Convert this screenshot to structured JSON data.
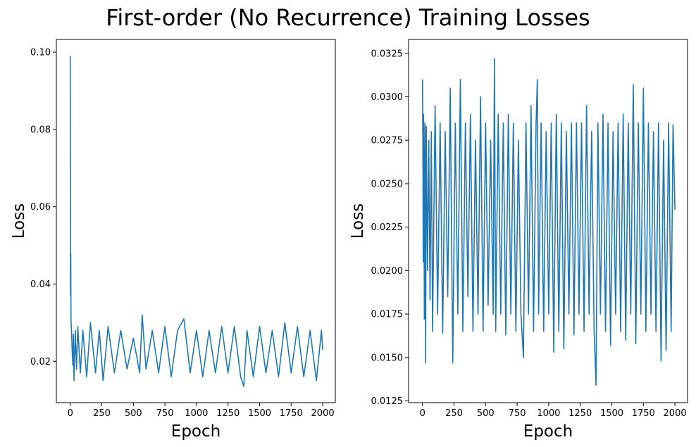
{
  "figure": {
    "title": "First-order (No Recurrence) Training Losses"
  },
  "chart_data": [
    {
      "type": "line",
      "title": "",
      "xlabel": "Epoch",
      "ylabel": "Loss",
      "xlim": [
        -110,
        2100
      ],
      "ylim": [
        0.0093,
        0.1033
      ],
      "xticks": [
        0,
        250,
        500,
        750,
        1000,
        1250,
        1500,
        1750,
        2000
      ],
      "xtick_labels": [
        "0",
        "250",
        "500",
        "750",
        "1000",
        "1250",
        "1500",
        "1750",
        "2000"
      ],
      "yticks": [
        0.02,
        0.04,
        0.06,
        0.08,
        0.1
      ],
      "ytick_labels": [
        "0.02",
        "0.04",
        "0.06",
        "0.08",
        "0.10"
      ],
      "grid": false,
      "color": "#1f77b4",
      "series": [
        {
          "x": [
            0,
            2,
            4,
            6,
            8,
            10,
            12,
            14,
            16,
            18,
            20,
            25,
            30,
            40,
            50,
            60,
            80,
            100,
            130,
            160,
            200,
            230,
            260,
            300,
            350,
            400,
            450,
            500,
            550,
            570,
            600,
            650,
            700,
            750,
            800,
            850,
            900,
            950,
            1000,
            1050,
            1100,
            1150,
            1200,
            1250,
            1300,
            1350,
            1375,
            1400,
            1450,
            1500,
            1550,
            1600,
            1650,
            1700,
            1750,
            1800,
            1850,
            1900,
            1950,
            1990,
            2000
          ],
          "y": [
            0.099,
            0.037,
            0.048,
            0.031,
            0.029,
            0.028,
            0.026,
            0.024,
            0.022,
            0.021,
            0.019,
            0.027,
            0.015,
            0.028,
            0.018,
            0.029,
            0.017,
            0.028,
            0.016,
            0.03,
            0.017,
            0.028,
            0.015,
            0.029,
            0.017,
            0.028,
            0.018,
            0.026,
            0.017,
            0.032,
            0.018,
            0.028,
            0.017,
            0.029,
            0.016,
            0.028,
            0.031,
            0.017,
            0.028,
            0.016,
            0.028,
            0.017,
            0.029,
            0.017,
            0.029,
            0.016,
            0.0135,
            0.028,
            0.016,
            0.029,
            0.017,
            0.028,
            0.016,
            0.03,
            0.017,
            0.029,
            0.016,
            0.028,
            0.015,
            0.028,
            0.023
          ]
        }
      ]
    },
    {
      "type": "line",
      "title": "",
      "xlabel": "Epoch",
      "ylabel": "Loss",
      "xlim": [
        -110,
        2100
      ],
      "ylim": [
        0.0124,
        0.0333
      ],
      "xticks": [
        0,
        250,
        500,
        750,
        1000,
        1250,
        1500,
        1750,
        2000
      ],
      "xtick_labels": [
        "0",
        "250",
        "500",
        "750",
        "1000",
        "1250",
        "1500",
        "1750",
        "2000"
      ],
      "yticks": [
        0.0125,
        0.015,
        0.0175,
        0.02,
        0.0225,
        0.025,
        0.0275,
        0.03,
        0.0325
      ],
      "ytick_labels": [
        "0.0125",
        "0.0150",
        "0.0175",
        "0.0200",
        "0.0225",
        "0.0250",
        "0.0275",
        "0.0300",
        "0.0325"
      ],
      "grid": false,
      "color": "#1f77b4",
      "series": [
        {
          "x": [
            0,
            3,
            6,
            9,
            12,
            15,
            20,
            25,
            30,
            40,
            50,
            60,
            70,
            80,
            100,
            120,
            140,
            160,
            180,
            200,
            220,
            240,
            260,
            280,
            300,
            320,
            340,
            360,
            380,
            400,
            420,
            440,
            460,
            480,
            500,
            520,
            540,
            560,
            570,
            580,
            600,
            620,
            640,
            660,
            680,
            700,
            720,
            740,
            760,
            780,
            800,
            820,
            840,
            860,
            880,
            900,
            910,
            920,
            940,
            960,
            980,
            1000,
            1020,
            1040,
            1060,
            1080,
            1100,
            1120,
            1140,
            1160,
            1180,
            1200,
            1220,
            1240,
            1260,
            1280,
            1300,
            1320,
            1340,
            1360,
            1375,
            1390,
            1410,
            1430,
            1450,
            1470,
            1490,
            1510,
            1530,
            1550,
            1570,
            1590,
            1610,
            1630,
            1650,
            1670,
            1690,
            1710,
            1730,
            1750,
            1770,
            1790,
            1810,
            1830,
            1850,
            1870,
            1890,
            1910,
            1930,
            1950,
            1970,
            1985,
            2000
          ],
          "y": [
            0.031,
            0.0275,
            0.0205,
            0.029,
            0.0245,
            0.0172,
            0.0285,
            0.0147,
            0.0283,
            0.02,
            0.0275,
            0.0183,
            0.028,
            0.0165,
            0.0295,
            0.0175,
            0.0285,
            0.0164,
            0.028,
            0.0185,
            0.0305,
            0.0147,
            0.0285,
            0.0175,
            0.031,
            0.0165,
            0.0285,
            0.0185,
            0.029,
            0.0165,
            0.0275,
            0.0175,
            0.03,
            0.0165,
            0.0285,
            0.018,
            0.0275,
            0.0175,
            0.0322,
            0.0165,
            0.029,
            0.0175,
            0.0285,
            0.0163,
            0.029,
            0.0175,
            0.0285,
            0.0165,
            0.0275,
            0.0175,
            0.015,
            0.0285,
            0.0175,
            0.0295,
            0.0165,
            0.0285,
            0.031,
            0.0175,
            0.0285,
            0.0165,
            0.028,
            0.0175,
            0.0285,
            0.0153,
            0.029,
            0.0165,
            0.0285,
            0.0155,
            0.028,
            0.0175,
            0.0285,
            0.0163,
            0.0285,
            0.0175,
            0.0285,
            0.0165,
            0.0295,
            0.0175,
            0.028,
            0.0165,
            0.0134,
            0.0285,
            0.0175,
            0.029,
            0.0165,
            0.0285,
            0.0157,
            0.028,
            0.0175,
            0.0285,
            0.0165,
            0.029,
            0.016,
            0.0285,
            0.0175,
            0.0307,
            0.0158,
            0.0285,
            0.0175,
            0.0305,
            0.0165,
            0.0285,
            0.0175,
            0.028,
            0.0165,
            0.0285,
            0.0148,
            0.0275,
            0.0154,
            0.0285,
            0.0165,
            0.0284,
            0.0235
          ]
        }
      ]
    }
  ]
}
